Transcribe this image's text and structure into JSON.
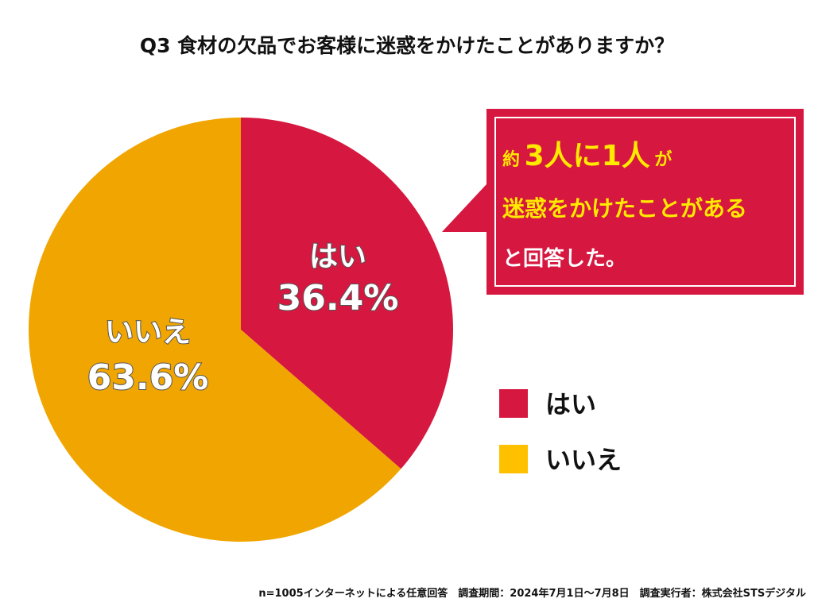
{
  "title": "Q3 食材の欠品でお客様に迷惑をかけたことがありますか？",
  "chart_data": {
    "type": "pie",
    "title": "Q3 食材の欠品でお客様に迷惑をかけたことがありますか？",
    "slices": [
      {
        "label": "はい",
        "value": 36.4,
        "value_label": "36.4%",
        "color": "#d6173f"
      },
      {
        "label": "いいえ",
        "value": 63.6,
        "value_label": "63.6%",
        "color": "#f0a500"
      }
    ],
    "legend": [
      {
        "label": "はい",
        "color": "#d6173f"
      },
      {
        "label": "いいえ",
        "color": "#ffc000"
      }
    ],
    "legend_position": "right"
  },
  "callout": {
    "prefix": "約",
    "num1": "3人",
    "mid": "に",
    "num2": "1人",
    "suffix": "が",
    "line2": "迷惑をかけたことがある",
    "line3": "と回答した。",
    "background": "#d6173f",
    "highlight_color": "#ffea00"
  },
  "footer": "n=1005インターネットによる任意回答　調査期間：2024年7月1日〜7月8日　調査実行者：株式会社STSデジタル"
}
